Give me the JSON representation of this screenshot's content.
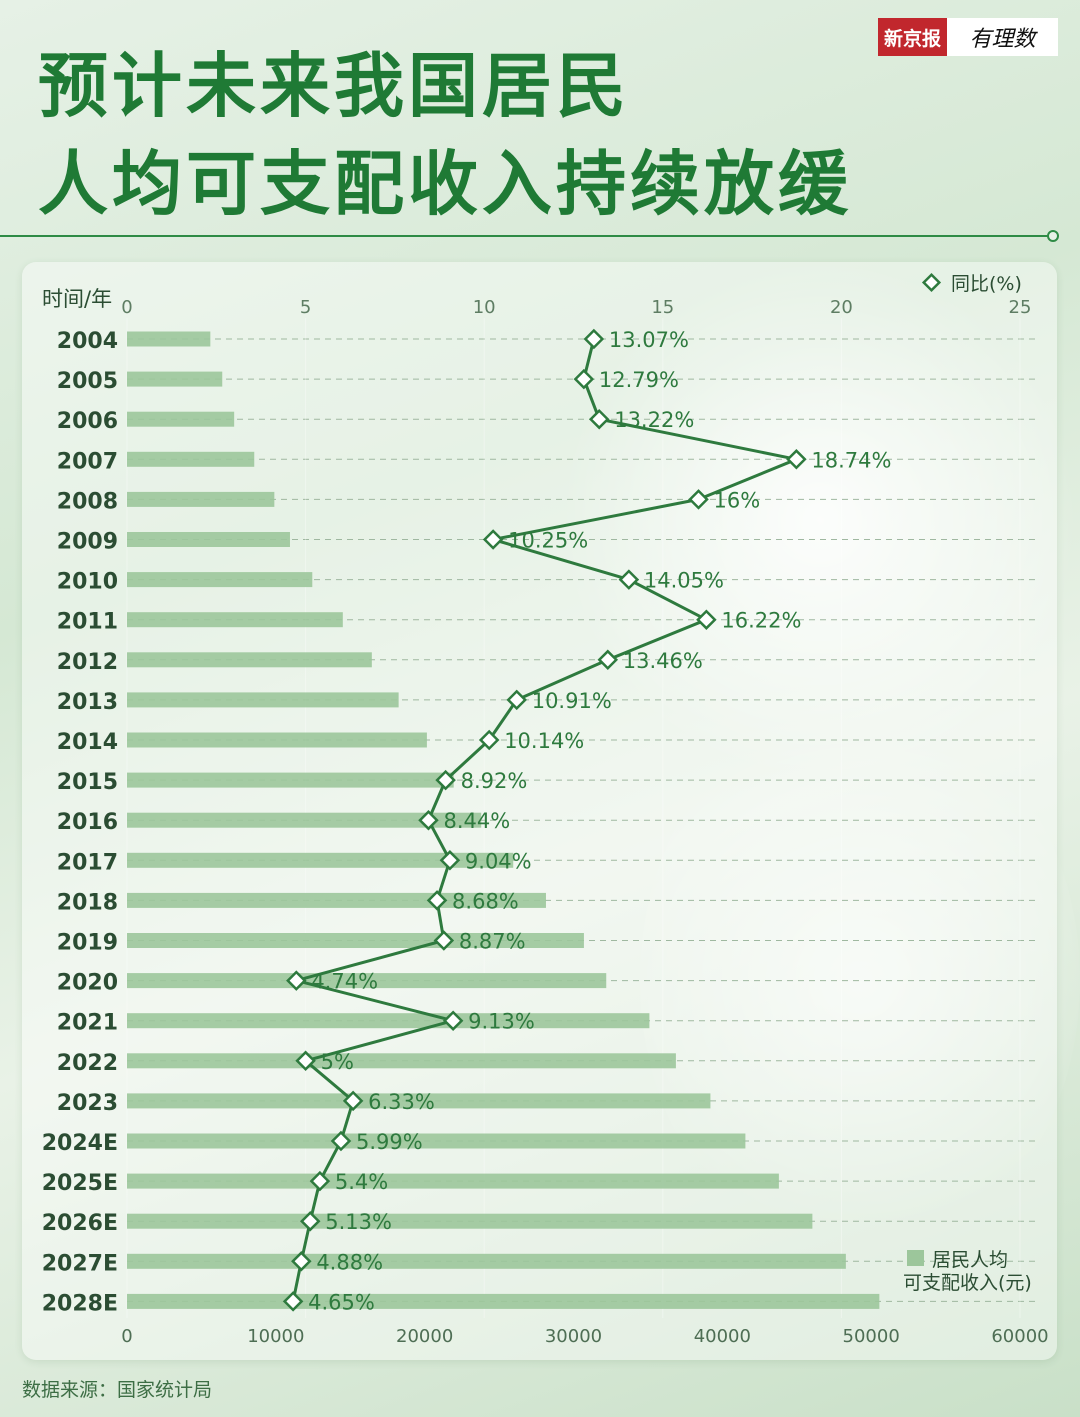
{
  "header": {
    "title_line1": "预计未来我国居民",
    "title_line2": "人均可支配收入持续放缓",
    "logo_brand": "新京报",
    "logo_sub": "有理数"
  },
  "footer": {
    "source": "数据来源：国家统计局"
  },
  "colors": {
    "line": "#2e7a3e",
    "bar": "#9cc69b",
    "title": "#1f7a35",
    "text": "#2b4d33"
  },
  "chart_data": {
    "type": "bar",
    "categories": [
      "2004",
      "2005",
      "2006",
      "2007",
      "2008",
      "2009",
      "2010",
      "2011",
      "2012",
      "2013",
      "2014",
      "2015",
      "2016",
      "2017",
      "2018",
      "2019",
      "2020",
      "2021",
      "2022",
      "2023",
      "2024E",
      "2025E",
      "2026E",
      "2027E",
      "2028E"
    ],
    "category_axis_label": "时间/年",
    "series": [
      {
        "name": "居民人均可支配收入(元)",
        "type": "bar",
        "axis": "bottom",
        "values": [
          5600,
          6400,
          7200,
          8550,
          9900,
          10950,
          12450,
          14500,
          16450,
          18250,
          20150,
          21950,
          23800,
          25950,
          28150,
          30700,
          32200,
          35100,
          36880,
          39200,
          41550,
          43800,
          46050,
          48300,
          50550
        ]
      },
      {
        "name": "同比(%)",
        "type": "line",
        "axis": "top",
        "values": [
          13.07,
          12.79,
          13.22,
          18.74,
          16,
          10.25,
          14.05,
          16.22,
          13.46,
          10.91,
          10.14,
          8.92,
          8.44,
          9.04,
          8.68,
          8.87,
          4.74,
          9.13,
          5,
          6.33,
          5.99,
          5.4,
          5.13,
          4.88,
          4.65
        ],
        "labels": [
          "13.07%",
          "12.79%",
          "13.22%",
          "18.74%",
          "16%",
          "10.25%",
          "14.05%",
          "16.22%",
          "13.46%",
          "10.91%",
          "10.14%",
          "8.92%",
          "8.44%",
          "9.04%",
          "8.68%",
          "8.87%",
          "4.74%",
          "9.13%",
          "5%",
          "6.33%",
          "5.99%",
          "5.4%",
          "5.13%",
          "4.88%",
          "4.65%"
        ]
      }
    ],
    "bottom_axis": {
      "range": [
        0,
        60000
      ],
      "ticks": [
        "0",
        "10000",
        "20000",
        "30000",
        "40000",
        "50000",
        "60000"
      ]
    },
    "top_axis": {
      "range": [
        0,
        25
      ],
      "ticks": [
        "0",
        "5",
        "10",
        "15",
        "20",
        "25"
      ]
    },
    "legend_line": "同比(%)",
    "legend_bar_line1": "居民人均",
    "legend_bar_line2": "可支配收入(元)",
    "legend_line_position": "top-right",
    "legend_bar_position": "bottom-right",
    "grid": "horizontal dashed"
  }
}
